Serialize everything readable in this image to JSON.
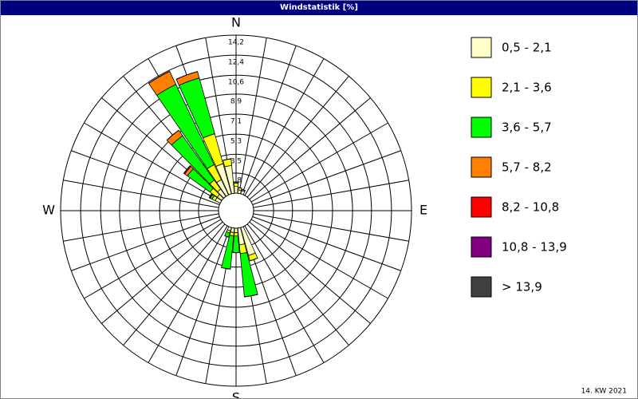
{
  "chart_data": {
    "type": "windrose",
    "title": "Windstatistik [%]",
    "footer": "14. KW 2021",
    "x": [
      300,
      310,
      320,
      330,
      340,
      350,
      0,
      10,
      20,
      160,
      170,
      180,
      190,
      200
    ],
    "xlim": [
      0,
      360
    ],
    "compass_labels": [
      {
        "value": 0,
        "label": "N"
      },
      {
        "value": 90,
        "label": "E"
      },
      {
        "value": 180,
        "label": "S"
      },
      {
        "value": 270,
        "label": "W"
      }
    ],
    "rlim": [
      0,
      14.2
    ],
    "rticks": [
      {
        "value": 1.8,
        "label": "1,8"
      },
      {
        "value": 3.5,
        "label": "3,5"
      },
      {
        "value": 5.3,
        "label": "5,3"
      },
      {
        "value": 7.1,
        "label": "7,1"
      },
      {
        "value": 8.9,
        "label": "8,9"
      },
      {
        "value": 10.6,
        "label": "10,6"
      },
      {
        "value": 12.4,
        "label": "12,4"
      },
      {
        "value": 14.2,
        "label": "14,2"
      }
    ],
    "series": [
      {
        "name": "0,5 - 2,1",
        "color": "#ffffc8",
        "values": [
          0.5,
          0.5,
          0.8,
          1.5,
          2.8,
          2.5,
          0.6,
          0.3,
          0.3,
          2.6,
          1.5,
          0.4,
          0.4,
          0.3
        ]
      },
      {
        "name": "2,1 - 3,6",
        "color": "#ffff00",
        "values": [
          0.3,
          0.8,
          1.0,
          1.5,
          2.8,
          0.6,
          0.3,
          0.2,
          0.1,
          0.5,
          0.8,
          0.3,
          0.3,
          0.2
        ]
      },
      {
        "name": "3,6 - 5,7",
        "color": "#00ff00",
        "values": [
          0.2,
          2.5,
          4.9,
          8.0,
          5.2,
          0.0,
          0.1,
          0.0,
          0.0,
          0.0,
          3.9,
          1.5,
          3.0,
          0.4
        ]
      },
      {
        "name": "5,7 - 8,2",
        "color": "#ff8000",
        "values": [
          0.0,
          0.3,
          0.6,
          1.3,
          0.6,
          0.0,
          0.0,
          0.0,
          0.0,
          0.0,
          0.0,
          0.0,
          0.0,
          0.0
        ]
      },
      {
        "name": "8,2 - 10,8",
        "color": "#ff0000",
        "values": [
          0.1,
          0.1,
          0.0,
          0.0,
          0.0,
          0.0,
          0.0,
          0.0,
          0.0,
          0.0,
          0.0,
          0.0,
          0.0,
          0.0
        ]
      },
      {
        "name": "10,8 - 13,9",
        "color": "#800080",
        "values": [
          0,
          0,
          0,
          0,
          0,
          0,
          0,
          0,
          0,
          0,
          0,
          0,
          0,
          0
        ]
      },
      {
        "name": "> 13,9",
        "color": "#404040",
        "values": [
          0,
          0,
          0,
          0,
          0,
          0,
          0,
          0,
          0,
          0,
          0,
          0,
          0,
          0
        ]
      }
    ]
  }
}
